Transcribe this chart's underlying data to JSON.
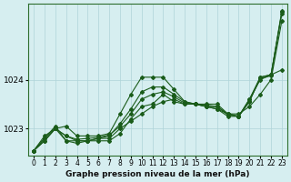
{
  "xlabel": "Graphe pression niveau de la mer (hPa)",
  "xlim": [
    -0.5,
    23.5
  ],
  "ylim": [
    1022.45,
    1025.55
  ],
  "yticks": [
    1023,
    1024
  ],
  "xticks": [
    0,
    1,
    2,
    3,
    4,
    5,
    6,
    7,
    8,
    9,
    10,
    11,
    12,
    13,
    14,
    15,
    16,
    17,
    18,
    19,
    20,
    21,
    22,
    23
  ],
  "background_color": "#d6eef0",
  "grid_color": "#aed4d8",
  "line_color": "#1a5c1a",
  "lines": [
    [
      1022.55,
      1022.75,
      1023.0,
      1022.85,
      1022.75,
      1022.75,
      1022.8,
      1022.85,
      1023.1,
      1023.4,
      1023.75,
      1023.85,
      1023.85,
      1023.7,
      1023.55,
      1023.5,
      1023.5,
      1023.5,
      1023.3,
      1023.25,
      1023.55,
      1024.05,
      1024.1,
      1025.35
    ],
    [
      1022.55,
      1022.85,
      1023.0,
      1022.75,
      1022.7,
      1022.75,
      1022.8,
      1022.8,
      1023.0,
      1023.15,
      1023.3,
      1023.45,
      1023.55,
      1023.6,
      1023.5,
      1023.5,
      1023.45,
      1023.4,
      1023.3,
      1023.3,
      1023.45,
      1023.7,
      1024.0,
      1025.2
    ],
    [
      1022.55,
      1022.8,
      1023.05,
      1022.75,
      1022.75,
      1022.75,
      1022.75,
      1022.75,
      1022.9,
      1023.2,
      1023.45,
      1023.5,
      1023.7,
      1023.55,
      1023.5,
      1023.5,
      1023.45,
      1023.4,
      1023.25,
      1023.25,
      1023.6,
      1024.0,
      1024.1,
      1025.4
    ],
    [
      1022.55,
      1022.75,
      1023.0,
      1023.05,
      1022.85,
      1022.85,
      1022.85,
      1022.9,
      1023.3,
      1023.7,
      1024.05,
      1024.05,
      1024.05,
      1023.8,
      1023.55,
      1023.5,
      1023.45,
      1023.45,
      1023.3,
      1023.25,
      1023.6,
      1024.05,
      1024.1,
      1024.2
    ],
    [
      1022.55,
      1022.8,
      1023.0,
      1022.85,
      1022.78,
      1022.8,
      1022.82,
      1022.87,
      1023.05,
      1023.3,
      1023.6,
      1023.7,
      1023.75,
      1023.65,
      1023.52,
      1023.5,
      1023.48,
      1023.45,
      1023.28,
      1023.25,
      1023.57,
      1024.02,
      1024.08,
      1025.38
    ]
  ]
}
